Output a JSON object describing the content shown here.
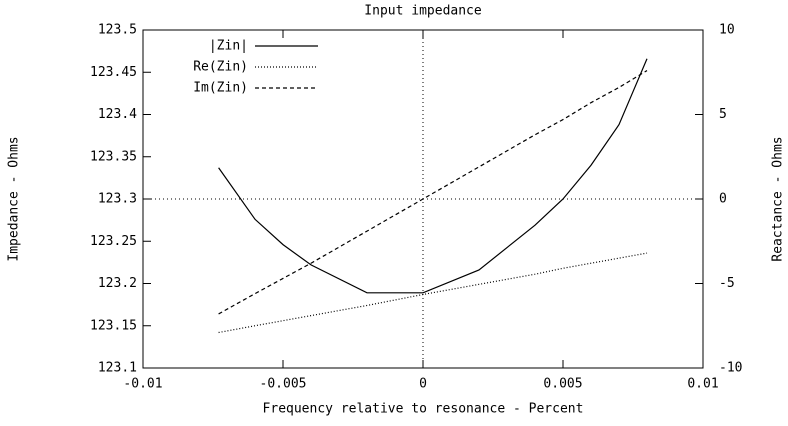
{
  "chart_data": {
    "type": "line",
    "title": "Input impedance",
    "xlabel": "Frequency relative to resonance - Percent",
    "ylabel": "Impedance - Ohms",
    "y2label": "Reactance - Ohms",
    "x": [
      -0.0073,
      -0.006,
      -0.005,
      -0.004,
      -0.002,
      0,
      0.002,
      0.004,
      0.005,
      0.006,
      0.007,
      0.008
    ],
    "series": [
      {
        "name": "|Zin|",
        "color": "#000000",
        "dash": "none",
        "axis": "y",
        "values": [
          123.337,
          123.276,
          123.246,
          123.222,
          123.189,
          123.189,
          123.216,
          123.269,
          123.3,
          123.34,
          123.388,
          123.466
        ]
      },
      {
        "name": "Re(Zin)",
        "color": "#000000",
        "dash": "1,2",
        "axis": "y",
        "values": [
          123.142,
          123.15,
          123.156,
          123.162,
          123.174,
          123.187,
          123.199,
          123.211,
          123.218,
          123.224,
          123.23,
          123.236
        ]
      },
      {
        "name": "Im(Zin)",
        "color": "#000000",
        "dash": "4,3",
        "axis": "y2",
        "values": [
          -6.8,
          -5.6,
          -4.7,
          -3.8,
          -1.9,
          0,
          1.9,
          3.8,
          4.7,
          5.7,
          6.6,
          7.6
        ]
      }
    ],
    "xlim": [
      -0.01,
      0.01
    ],
    "xticks": [
      -0.01,
      -0.005,
      0,
      0.005,
      0.01
    ],
    "ylim": [
      123.1,
      123.5
    ],
    "yticks": [
      123.1,
      123.15,
      123.2,
      123.25,
      123.3,
      123.35,
      123.4,
      123.45,
      123.5
    ],
    "y2lim": [
      -10,
      10
    ],
    "y2ticks": [
      -10,
      -5,
      0,
      5,
      10
    ],
    "zeroaxis": true,
    "legend": "top-left"
  }
}
